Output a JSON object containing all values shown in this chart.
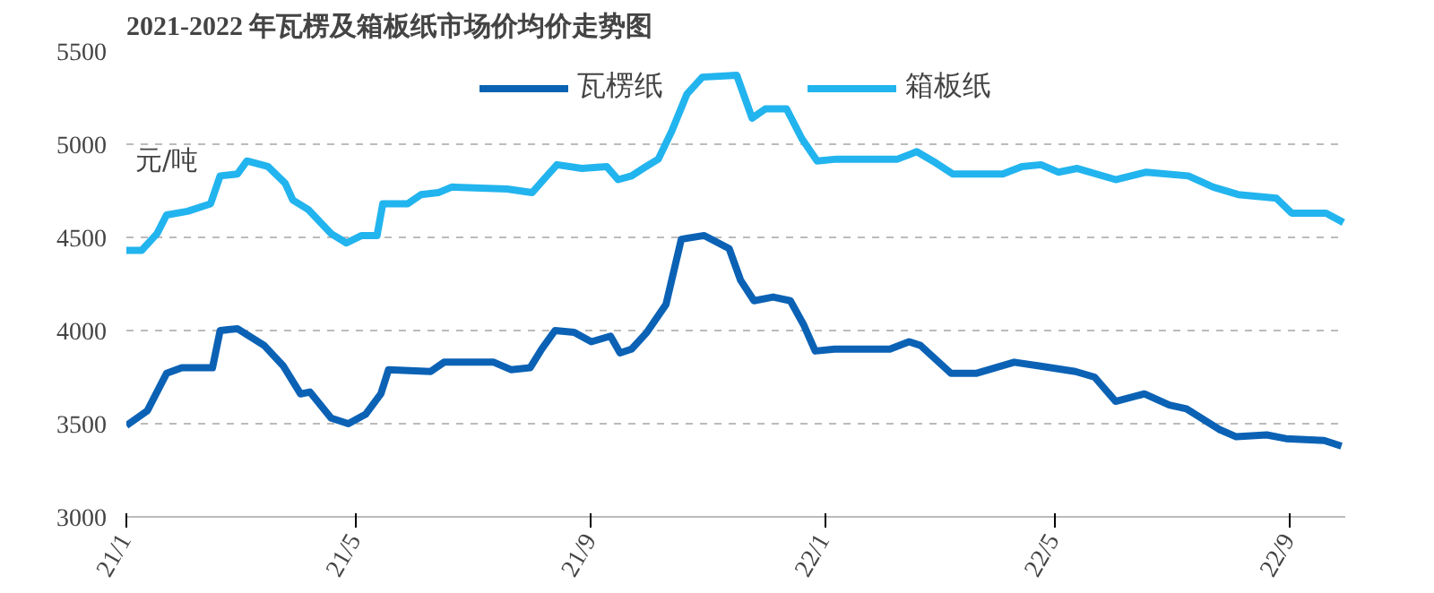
{
  "chart_data": {
    "type": "line",
    "title": "2021-2022 年瓦楞及箱板纸市场价均价走势图",
    "annotations": [
      "元/吨"
    ],
    "series": [
      {
        "name": "瓦楞纸",
        "color": "#0b62b5",
        "x": [
          "2021-01-01",
          "2021-01-12",
          "2021-01-22",
          "2021-01-30",
          "2021-02-15",
          "2021-02-19",
          "2021-02-28",
          "2021-03-14",
          "2021-03-24",
          "2021-04-02",
          "2021-04-07",
          "2021-04-18",
          "2021-04-27",
          "2021-05-06",
          "2021-05-14",
          "2021-05-18",
          "2021-06-09",
          "2021-06-16",
          "2021-07-12",
          "2021-07-21",
          "2021-07-31",
          "2021-08-06",
          "2021-08-13",
          "2021-08-23",
          "2021-09-01",
          "2021-09-11",
          "2021-09-16",
          "2021-09-22",
          "2021-09-30",
          "2021-10-10",
          "2021-10-18",
          "2021-10-30",
          "2021-11-12",
          "2021-11-18",
          "2021-11-25",
          "2021-12-05",
          "2021-12-14",
          "2021-12-21",
          "2021-12-27",
          "2022-01-06",
          "2022-02-04",
          "2022-02-14",
          "2022-02-20",
          "2022-03-08",
          "2022-03-21",
          "2022-03-31",
          "2022-04-10",
          "2022-04-23",
          "2022-05-12",
          "2022-05-22",
          "2022-06-02",
          "2022-06-17",
          "2022-06-30",
          "2022-07-09",
          "2022-07-26",
          "2022-08-04",
          "2022-08-20",
          "2022-08-30",
          "2022-09-19",
          "2022-09-28"
        ],
        "values": [
          3490,
          3570,
          3770,
          3800,
          3800,
          4000,
          4010,
          3920,
          3810,
          3660,
          3670,
          3530,
          3500,
          3550,
          3660,
          3790,
          3780,
          3830,
          3830,
          3790,
          3800,
          3900,
          4000,
          3990,
          3940,
          3970,
          3880,
          3900,
          3990,
          4140,
          4490,
          4510,
          4440,
          4270,
          4160,
          4180,
          4160,
          4030,
          3890,
          3900,
          3900,
          3940,
          3920,
          3770,
          3770,
          3800,
          3830,
          3810,
          3780,
          3750,
          3620,
          3660,
          3600,
          3580,
          3470,
          3430,
          3440,
          3420,
          3410,
          3380
        ]
      },
      {
        "name": "箱板纸",
        "color": "#22b4ee",
        "x": [
          "2021-01-01",
          "2021-01-09",
          "2021-01-17",
          "2021-01-22",
          "2021-02-02",
          "2021-02-14",
          "2021-02-19",
          "2021-02-28",
          "2021-03-05",
          "2021-03-16",
          "2021-03-25",
          "2021-03-29",
          "2021-04-06",
          "2021-04-18",
          "2021-04-26",
          "2021-05-04",
          "2021-05-12",
          "2021-05-15",
          "2021-05-28",
          "2021-06-04",
          "2021-06-13",
          "2021-06-20",
          "2021-07-19",
          "2021-08-01",
          "2021-08-07",
          "2021-08-14",
          "2021-08-27",
          "2021-09-09",
          "2021-09-15",
          "2021-09-22",
          "2021-09-28",
          "2021-10-06",
          "2021-10-13",
          "2021-10-21",
          "2021-10-29",
          "2021-11-16",
          "2021-11-24",
          "2021-12-01",
          "2021-12-12",
          "2021-12-20",
          "2021-12-28",
          "2022-01-07",
          "2022-02-08",
          "2022-02-18",
          "2022-02-28",
          "2022-03-09",
          "2022-04-04",
          "2022-04-14",
          "2022-04-24",
          "2022-05-03",
          "2022-05-13",
          "2022-06-02",
          "2022-06-18",
          "2022-07-10",
          "2022-07-23",
          "2022-08-05",
          "2022-08-25",
          "2022-09-02",
          "2022-09-20",
          "2022-09-29"
        ],
        "values": [
          4430,
          4430,
          4520,
          4620,
          4640,
          4680,
          4830,
          4840,
          4910,
          4880,
          4790,
          4700,
          4650,
          4520,
          4470,
          4510,
          4510,
          4680,
          4680,
          4730,
          4740,
          4770,
          4760,
          4740,
          4810,
          4890,
          4870,
          4880,
          4810,
          4830,
          4870,
          4920,
          5070,
          5270,
          5360,
          5370,
          5140,
          5190,
          5190,
          5030,
          4910,
          4920,
          4920,
          4960,
          4900,
          4840,
          4840,
          4880,
          4890,
          4850,
          4870,
          4810,
          4850,
          4830,
          4770,
          4730,
          4710,
          4630,
          4630,
          4580
        ]
      }
    ],
    "xlim": [
      "2021-01-01",
      "2022-09-30"
    ],
    "xticks": [
      {
        "value": "2021-01-01",
        "label": "21/1"
      },
      {
        "value": "2021-05-01",
        "label": "21/5"
      },
      {
        "value": "2021-09-01",
        "label": "21/9"
      },
      {
        "value": "2022-01-01",
        "label": "22/1"
      },
      {
        "value": "2022-05-01",
        "label": "22/5"
      },
      {
        "value": "2022-09-01",
        "label": "22/9"
      }
    ],
    "ylim": [
      3000,
      5500
    ],
    "yticks": [
      3000,
      3500,
      4000,
      4500,
      5000,
      5500
    ],
    "grid": "y",
    "legend": "top",
    "marker": "none",
    "line_style": "solid"
  }
}
